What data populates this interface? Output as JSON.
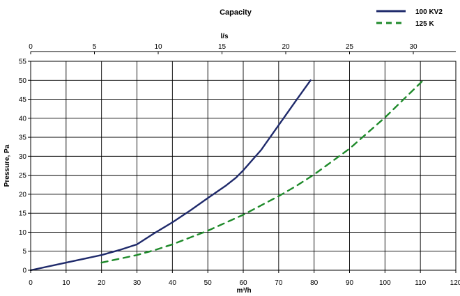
{
  "chart_data": {
    "type": "line",
    "title": "Capacity",
    "xlabel": "m³/h",
    "x2label": "l/s",
    "ylabel": "Pressure, Pa",
    "xlim": [
      0,
      120
    ],
    "x2lim": [
      0,
      33.333
    ],
    "ylim": [
      0,
      55
    ],
    "x_ticks": [
      "0",
      "10",
      "20",
      "30",
      "40",
      "50",
      "60",
      "70",
      "80",
      "90",
      "100",
      "110",
      "120"
    ],
    "x2_ticks": [
      "0",
      "5",
      "10",
      "15",
      "20",
      "25",
      "30"
    ],
    "y_ticks": [
      "0",
      "5",
      "10",
      "15",
      "20",
      "25",
      "30",
      "35",
      "40",
      "45",
      "50",
      "55"
    ],
    "grid": true,
    "legend_position": "top-right",
    "series": [
      {
        "name": "100 KV2",
        "color": "#1f2a6b",
        "style": "solid",
        "x": [
          0,
          10,
          20,
          25,
          30,
          35,
          40,
          45,
          50,
          55,
          58,
          60,
          65,
          70,
          75,
          79
        ],
        "y": [
          0,
          2,
          4,
          5.3,
          6.8,
          9.8,
          12.6,
          15.7,
          19,
          22.2,
          24.4,
          26.3,
          31.6,
          38.2,
          44.8,
          50
        ]
      },
      {
        "name": "125 K",
        "color": "#1e8a2a",
        "style": "dashed",
        "x": [
          20,
          25,
          30,
          35,
          40,
          50,
          60,
          70,
          75,
          80,
          90,
          100,
          111
        ],
        "y": [
          2,
          3,
          4,
          5.3,
          6.8,
          10.4,
          14.6,
          19.5,
          22.2,
          25.2,
          32,
          40.2,
          50.2
        ]
      }
    ]
  }
}
